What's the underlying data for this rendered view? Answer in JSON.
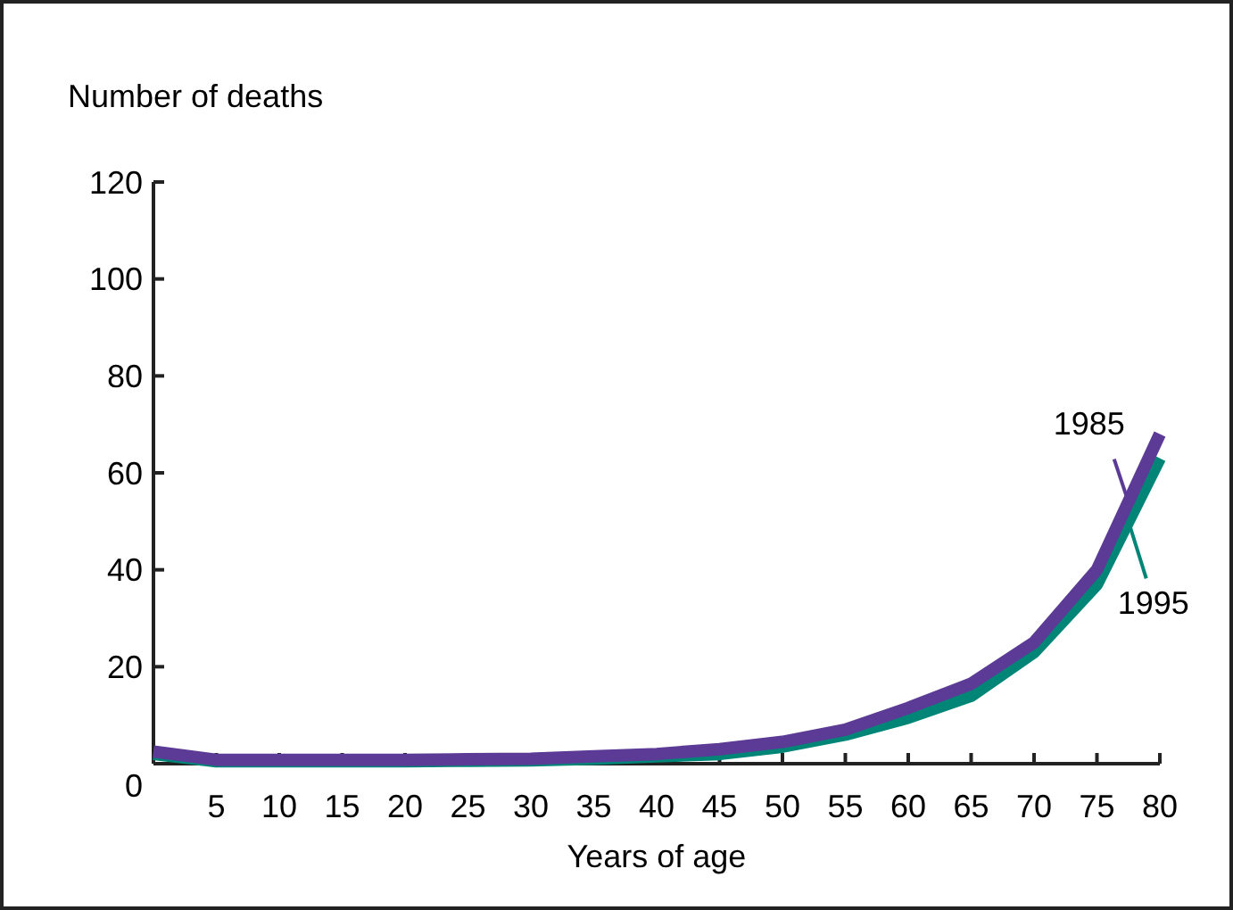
{
  "chart_data": {
    "type": "line",
    "ylabel": "Number of deaths",
    "xlabel": "Years of age",
    "x": [
      0,
      5,
      10,
      15,
      20,
      25,
      30,
      35,
      40,
      45,
      50,
      55,
      60,
      65,
      70,
      75,
      80
    ],
    "series": [
      {
        "name": "1995",
        "color": "#008576",
        "values": [
          2,
          0.5,
          0.5,
          0.5,
          0.5,
          0.6,
          0.7,
          1,
          1.5,
          2,
          3.5,
          6,
          9.5,
          14,
          23,
          37,
          63
        ]
      },
      {
        "name": "1985",
        "color": "#5b3b95",
        "values": [
          2.5,
          0.8,
          0.8,
          0.8,
          0.8,
          0.9,
          1,
          1.5,
          2,
          3,
          4.5,
          7,
          11.5,
          16.5,
          25,
          40,
          68
        ]
      }
    ],
    "xlim": [
      0,
      80
    ],
    "xticks": [
      5,
      10,
      15,
      20,
      25,
      30,
      35,
      40,
      45,
      50,
      55,
      60,
      65,
      70,
      75,
      80
    ],
    "ylim": [
      0,
      120
    ],
    "yticks": [
      0,
      20,
      40,
      60,
      80,
      100,
      120
    ],
    "grid": false,
    "line_style": "solid"
  }
}
